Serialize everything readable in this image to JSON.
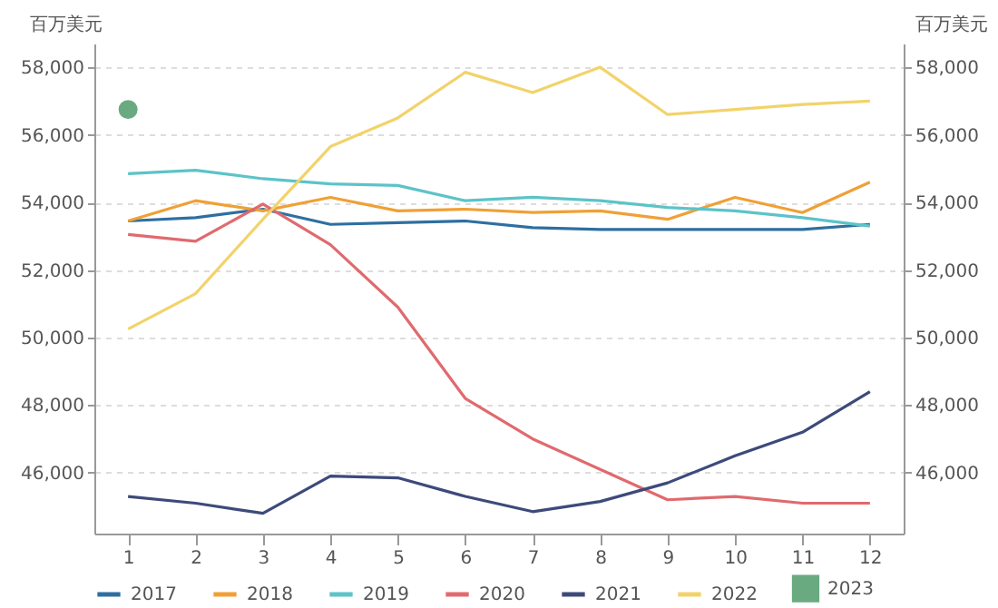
{
  "chart_data": {
    "type": "line",
    "ylabel": "百万美元",
    "y2label": "百万美元",
    "x": [
      1,
      2,
      3,
      4,
      5,
      6,
      7,
      8,
      9,
      10,
      11,
      12
    ],
    "xlim": [
      0.5,
      12.5
    ],
    "xticks": [
      1,
      2,
      3,
      4,
      5,
      6,
      7,
      8,
      9,
      10,
      11,
      12
    ],
    "ylim": [
      44200,
      58700
    ],
    "yticks": [
      {
        "value": 46000,
        "label": "46,000"
      },
      {
        "value": 48000,
        "label": "48,000"
      },
      {
        "value": 50000,
        "label": "50,000"
      },
      {
        "value": 52000,
        "label": "52,000"
      },
      {
        "value": 54000,
        "label": "54,000"
      },
      {
        "value": 56000,
        "label": "56,000"
      },
      {
        "value": 58000,
        "label": "58,000"
      }
    ],
    "y2lim": [
      44200,
      58700
    ],
    "y2ticks": [
      {
        "value": 46000,
        "label": "46,000"
      },
      {
        "value": 48000,
        "label": "48,000"
      },
      {
        "value": 50000,
        "label": "50,000"
      },
      {
        "value": 52000,
        "label": "52,000"
      },
      {
        "value": 54000,
        "label": "54,000"
      },
      {
        "value": 56000,
        "label": "56,000"
      },
      {
        "value": 58000,
        "label": "58,000"
      }
    ],
    "grid": "y",
    "legend": "bottom",
    "marker": "none",
    "series": [
      {
        "name": "2017",
        "color": "#2e6fa0",
        "values": [
          53450,
          53550,
          53800,
          53350,
          53400,
          53450,
          53250,
          53200,
          53200,
          53200,
          53200,
          53350
        ]
      },
      {
        "name": "2018",
        "color": "#f0a035",
        "values": [
          53450,
          54050,
          53750,
          54150,
          53750,
          53800,
          53700,
          53750,
          53500,
          54150,
          53700,
          54600
        ]
      },
      {
        "name": "2019",
        "color": "#5cc3c8",
        "values": [
          54850,
          54950,
          54700,
          54550,
          54500,
          54050,
          54150,
          54050,
          53850,
          53750,
          53550,
          53300
        ]
      },
      {
        "name": "2020",
        "color": "#e06a6e",
        "values": [
          53050,
          52850,
          53950,
          52750,
          50900,
          48200,
          47000,
          46100,
          45200,
          45300,
          45100,
          45100
        ]
      },
      {
        "name": "2021",
        "color": "#3d4a7a",
        "values": [
          45300,
          45100,
          44800,
          45900,
          45850,
          45300,
          44850,
          45150,
          45700,
          46500,
          47200,
          48400
        ]
      },
      {
        "name": "2022",
        "color": "#f2d36b",
        "values": [
          50250,
          51300,
          53500,
          55650,
          56500,
          57850,
          57250,
          58000,
          56600,
          56750,
          56900,
          57000
        ]
      },
      {
        "name": "2023",
        "color": "#6aaa80",
        "type": "scatter",
        "marker": "circle",
        "values": [
          56750,
          null,
          null,
          null,
          null,
          null,
          null,
          null,
          null,
          null,
          null,
          null
        ]
      }
    ]
  }
}
